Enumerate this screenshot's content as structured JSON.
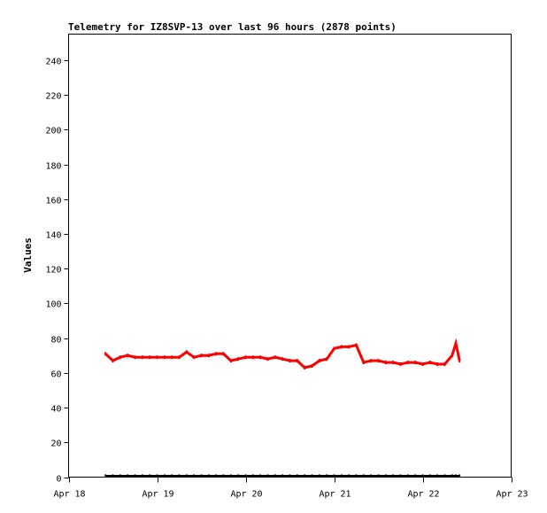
{
  "chart_data": {
    "type": "line",
    "title": "Telemetry for IZ8SVP-13 over last 96 hours (2878 points)",
    "xlabel": "",
    "ylabel": "Values",
    "xlim": [
      "Apr 18 00:00",
      "Apr 23 00:00"
    ],
    "ylim": [
      0,
      255
    ],
    "x_ticks": [
      "Apr 18",
      "Apr 19",
      "Apr 20",
      "Apr 21",
      "Apr 22",
      "Apr 23"
    ],
    "y_ticks": [
      0,
      20,
      40,
      60,
      80,
      100,
      120,
      140,
      160,
      180,
      200,
      220,
      240
    ],
    "grid": false,
    "x": [
      "Apr 18 10:00",
      "Apr 18 12:00",
      "Apr 18 14:00",
      "Apr 18 16:00",
      "Apr 18 18:00",
      "Apr 18 20:00",
      "Apr 18 22:00",
      "Apr 19 00:00",
      "Apr 19 02:00",
      "Apr 19 04:00",
      "Apr 19 06:00",
      "Apr 19 08:00",
      "Apr 19 10:00",
      "Apr 19 12:00",
      "Apr 19 14:00",
      "Apr 19 16:00",
      "Apr 19 18:00",
      "Apr 19 20:00",
      "Apr 19 22:00",
      "Apr 20 00:00",
      "Apr 20 02:00",
      "Apr 20 04:00",
      "Apr 20 06:00",
      "Apr 20 08:00",
      "Apr 20 10:00",
      "Apr 20 12:00",
      "Apr 20 14:00",
      "Apr 20 16:00",
      "Apr 20 18:00",
      "Apr 20 20:00",
      "Apr 20 22:00",
      "Apr 21 00:00",
      "Apr 21 02:00",
      "Apr 21 04:00",
      "Apr 21 06:00",
      "Apr 21 08:00",
      "Apr 21 10:00",
      "Apr 21 12:00",
      "Apr 21 14:00",
      "Apr 21 16:00",
      "Apr 21 18:00",
      "Apr 21 20:00",
      "Apr 21 22:00",
      "Apr 22 00:00",
      "Apr 22 02:00",
      "Apr 22 04:00",
      "Apr 22 06:00",
      "Apr 22 08:00",
      "Apr 22 09:00",
      "Apr 22 10:00"
    ],
    "series": [
      {
        "color": "#ff0000",
        "values": [
          71,
          67,
          69,
          70,
          69,
          69,
          69,
          69,
          69,
          69,
          69,
          72,
          69,
          70,
          70,
          71,
          71,
          67,
          68,
          69,
          69,
          69,
          68,
          69,
          68,
          67,
          67,
          63,
          64,
          67,
          68,
          74,
          75,
          75,
          76,
          66,
          67,
          67,
          66,
          66,
          65,
          66,
          66,
          65,
          66,
          65,
          65,
          70,
          77,
          67
        ]
      },
      {
        "color": "#000000",
        "values": [
          0,
          0,
          0,
          0,
          0,
          0,
          0,
          0,
          0,
          0,
          0,
          0,
          0,
          0,
          0,
          0,
          0,
          0,
          0,
          0,
          0,
          0,
          0,
          0,
          0,
          0,
          0,
          0,
          0,
          0,
          0,
          0,
          0,
          0,
          0,
          0,
          0,
          0,
          0,
          0,
          0,
          0,
          0,
          0,
          0,
          0,
          0,
          0,
          0,
          0
        ]
      }
    ]
  }
}
